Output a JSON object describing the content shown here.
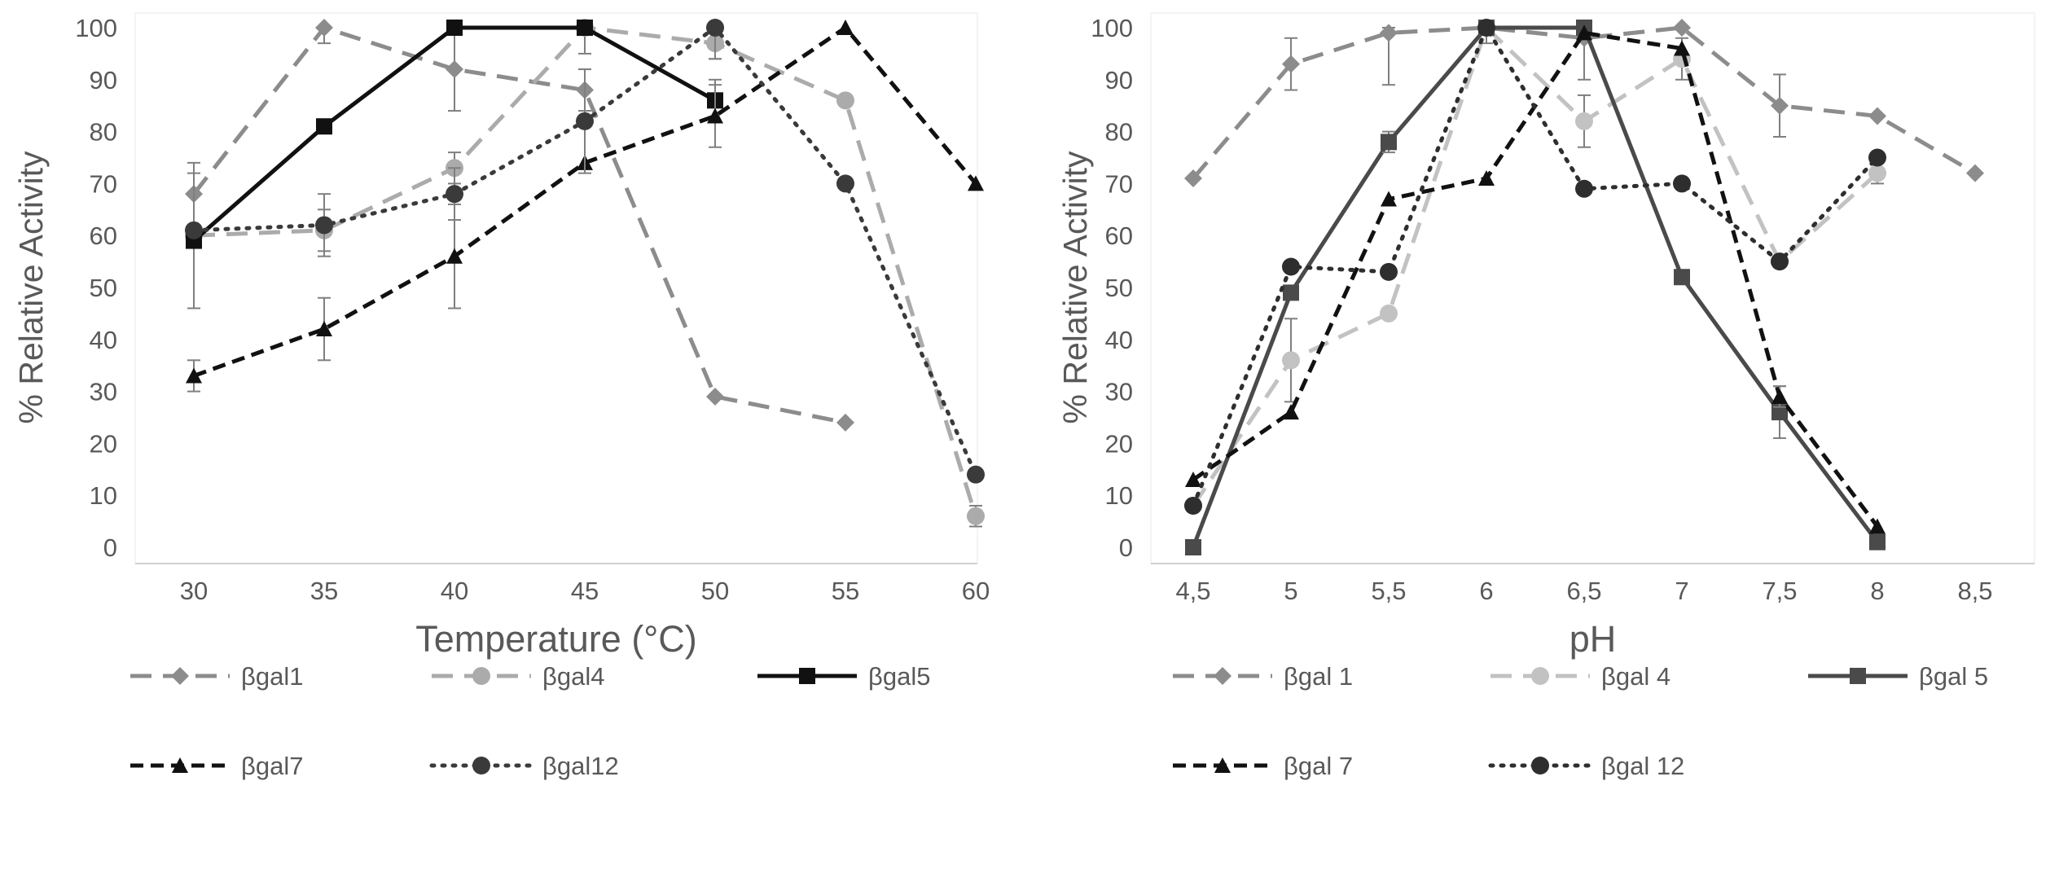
{
  "chart_data": [
    {
      "type": "line",
      "title": "",
      "xlabel": "Temperature (°C)",
      "ylabel": "% Relative Activity",
      "categories": [
        "30",
        "35",
        "40",
        "45",
        "50",
        "55",
        "60"
      ],
      "ylim": [
        0,
        100
      ],
      "yticks": [
        "0",
        "10",
        "20",
        "30",
        "40",
        "50",
        "60",
        "70",
        "80",
        "90",
        "100"
      ],
      "grid": false,
      "legend": "bottom",
      "series": [
        {
          "name": "βgal1",
          "values": [
            68,
            100,
            92,
            88,
            29,
            24,
            null
          ],
          "errors": [
            6,
            3,
            8,
            4,
            0,
            0,
            0
          ],
          "color": "#8c8c8c",
          "dash": "long",
          "marker": "diamond"
        },
        {
          "name": "βgal4",
          "values": [
            60,
            61,
            73,
            100,
            97,
            86,
            6
          ],
          "errors": [
            2,
            4,
            3,
            5,
            3,
            0,
            2
          ],
          "color": "#ababab",
          "dash": "long",
          "marker": "circle"
        },
        {
          "name": "βgal5",
          "values": [
            59,
            81,
            100,
            100,
            86,
            null,
            null
          ],
          "errors": [
            13,
            1,
            0,
            0,
            4,
            0,
            0
          ],
          "color": "#111111",
          "dash": "solid",
          "marker": "square"
        },
        {
          "name": "βgal7",
          "values": [
            33,
            42,
            56,
            74,
            83,
            100,
            70
          ],
          "errors": [
            3,
            6,
            10,
            0,
            6,
            0,
            0
          ],
          "color": "#111111",
          "dash": "short",
          "marker": "triangle"
        },
        {
          "name": "βgal12",
          "values": [
            61,
            62,
            68,
            82,
            100,
            70,
            14
          ],
          "errors": [
            0,
            6,
            5,
            10,
            6,
            0,
            0
          ],
          "color": "#3a3a3a",
          "dash": "dot",
          "marker": "circle"
        }
      ]
    },
    {
      "type": "line",
      "title": "",
      "xlabel": "pH",
      "ylabel": "% Relative Activity",
      "categories": [
        "4,5",
        "5",
        "5,5",
        "6",
        "6,5",
        "7",
        "7,5",
        "8",
        "8,5"
      ],
      "ylim": [
        0,
        100
      ],
      "yticks": [
        "0",
        "10",
        "20",
        "30",
        "40",
        "50",
        "60",
        "70",
        "80",
        "90",
        "100"
      ],
      "grid": false,
      "legend": "bottom",
      "series": [
        {
          "name": "βgal 1",
          "values": [
            71,
            93,
            99,
            100,
            98,
            100,
            85,
            83,
            72
          ],
          "errors": [
            0,
            5,
            10,
            0,
            8,
            0,
            6,
            0,
            0
          ],
          "color": "#8c8c8c",
          "dash": "long",
          "marker": "diamond"
        },
        {
          "name": "βgal 4",
          "values": [
            8,
            36,
            45,
            100,
            82,
            94,
            55,
            72,
            null
          ],
          "errors": [
            0,
            8,
            0,
            3,
            5,
            4,
            0,
            2,
            0
          ],
          "color": "#c2c2c2",
          "dash": "long",
          "marker": "circle"
        },
        {
          "name": "βgal 5",
          "values": [
            0,
            49,
            78,
            100,
            100,
            52,
            26,
            1,
            null
          ],
          "errors": [
            0,
            0,
            2,
            0,
            0,
            0,
            5,
            0,
            0
          ],
          "color": "#4a4a4a",
          "dash": "solid",
          "marker": "square"
        },
        {
          "name": "βgal 7",
          "values": [
            13,
            26,
            67,
            71,
            99,
            96,
            29,
            4,
            null
          ],
          "errors": [
            0,
            0,
            0,
            0,
            0,
            0,
            2,
            0,
            0
          ],
          "color": "#111111",
          "dash": "short",
          "marker": "triangle"
        },
        {
          "name": "βgal 12",
          "values": [
            8,
            54,
            53,
            100,
            69,
            70,
            55,
            75,
            null
          ],
          "errors": [
            0,
            0,
            0,
            0,
            0,
            0,
            0,
            0,
            0
          ],
          "color": "#2e2e2e",
          "dash": "dot",
          "marker": "circle"
        }
      ]
    }
  ]
}
